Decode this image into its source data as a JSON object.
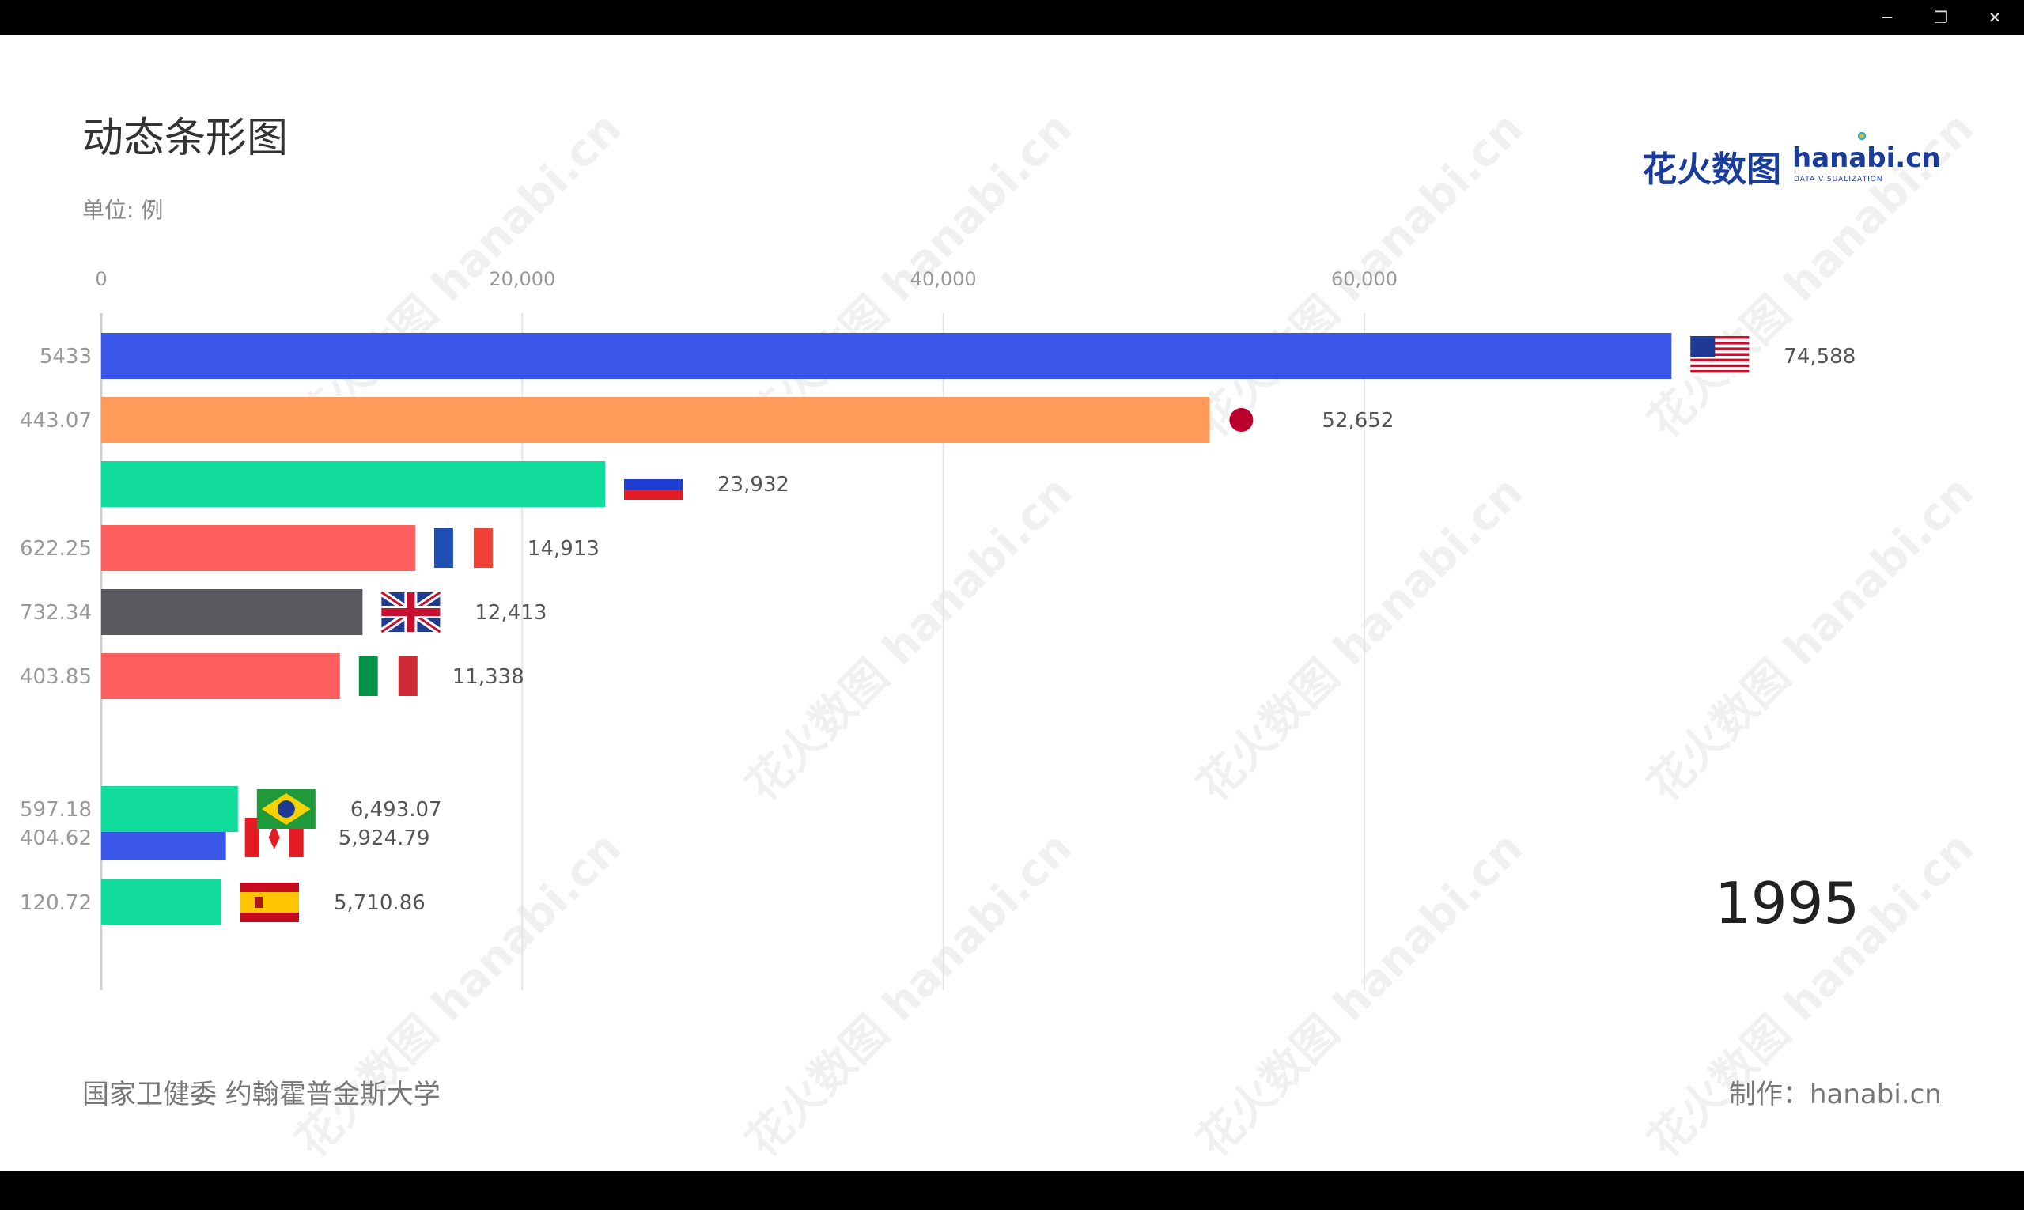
{
  "window": {
    "minimize": "─",
    "restore": "❐",
    "close": "✕"
  },
  "header": {
    "title": "动态条形图",
    "unit": "单位: 例"
  },
  "logo": {
    "cn": "花火数图",
    "en": "hanabi.cn",
    "sub": "DATA VISUALIZATION"
  },
  "footer": {
    "source": "国家卫健委 约翰霍普金斯大学",
    "credit": "制作：hanabi.cn"
  },
  "watermark_text": "花火数图 hanabi.cn",
  "colors": {
    "blue": "#3a56e8",
    "orange": "#ff9a5a",
    "teal": "#12dc9c",
    "red": "#ff5f5f",
    "gray": "#5a5a60"
  },
  "chart_data": {
    "type": "bar",
    "orientation": "horizontal",
    "year": "1995",
    "xlim": [
      0,
      80000
    ],
    "x_ticks": [
      0,
      20000,
      40000,
      60000
    ],
    "x_tick_labels": [
      "0",
      "20,000",
      "40,000",
      "60,000"
    ],
    "grid": true,
    "bars": [
      {
        "side_label": "5433",
        "value": 74588,
        "value_label": "74,588",
        "color": "#3a56e8",
        "flag": "usa"
      },
      {
        "side_label": "443.07",
        "value": 52652,
        "value_label": "52,652",
        "color": "#ff9a5a",
        "flag": "japan"
      },
      {
        "side_label": "",
        "value": 23932,
        "value_label": "23,932",
        "color": "#12dc9c",
        "flag": "russia"
      },
      {
        "side_label": "622.25",
        "value": 14913,
        "value_label": "14,913",
        "color": "#ff5f5f",
        "flag": "france"
      },
      {
        "side_label": "732.34",
        "value": 12413,
        "value_label": "12,413",
        "color": "#5a5a60",
        "flag": "uk"
      },
      {
        "side_label": "403.85",
        "value": 11338,
        "value_label": "11,338",
        "color": "#ff5f5f",
        "flag": "italy"
      },
      {
        "side_label": "404.62",
        "value": 5924.79,
        "value_label": "5,924.79",
        "color": "#3a56e8",
        "flag": "canada"
      },
      {
        "side_label": "597.18",
        "value": 6493.07,
        "value_label": "6,493.07",
        "color": "#12dc9c",
        "flag": "brazil"
      },
      {
        "side_label": "120.72",
        "value": 5710.86,
        "value_label": "5,710.86",
        "color": "#12dc9c",
        "flag": "spain"
      }
    ]
  }
}
